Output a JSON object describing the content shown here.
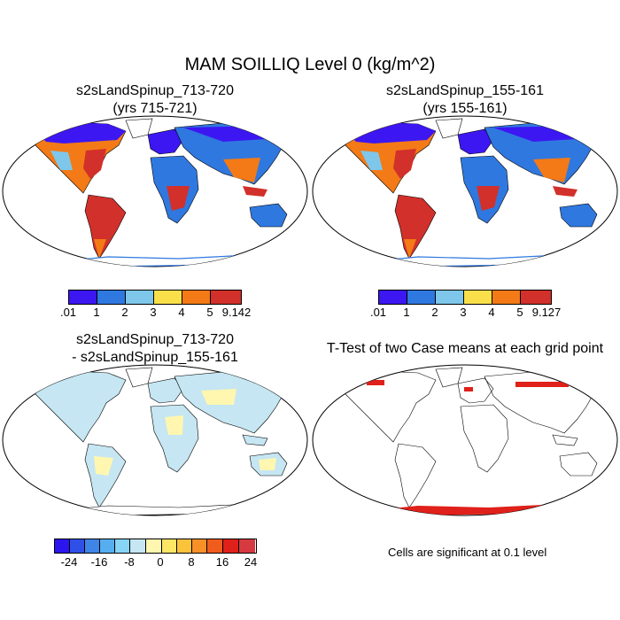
{
  "figure": {
    "title": "MAM SOILLIQ Level 0 (kg/m^2)",
    "panel_a": {
      "line1": "s2sLandSpinup_713-720",
      "line2": "(yrs 715-721)"
    },
    "panel_b": {
      "line1": "s2sLandSpinup_155-161",
      "line2": "(yrs 155-161)"
    },
    "panel_c": {
      "line1": "s2sLandSpinup_713-720",
      "line2": "- s2sLandSpinup_155-161"
    },
    "panel_d": {
      "line1": "T-Test of two Case means at each grid point"
    },
    "colorbar_a": {
      "colors": [
        "#3c17f2",
        "#2f78e0",
        "#7ec7ea",
        "#f9e04a",
        "#f37a16",
        "#d2302a"
      ],
      "labels": [
        ".01",
        "1",
        "2",
        "3",
        "4",
        "5",
        "9.142"
      ]
    },
    "colorbar_b": {
      "colors": [
        "#3c17f2",
        "#2f78e0",
        "#7ec7ea",
        "#f9e04a",
        "#f37a16",
        "#d2302a"
      ],
      "labels": [
        ".01",
        "1",
        "2",
        "3",
        "4",
        "5",
        "9.127"
      ]
    },
    "colorbar_diff": {
      "colors": [
        "#2b16f0",
        "#2f50e6",
        "#3f85e8",
        "#56aef0",
        "#86d4f6",
        "#c5e6f2",
        "#fff7b0",
        "#fde565",
        "#fbc33a",
        "#f89028",
        "#f05c1e",
        "#e0201a",
        "#d63a40"
      ],
      "labels": [
        "-24",
        "-16",
        "-8",
        "0",
        "8",
        "16",
        "24"
      ]
    },
    "ttest_note": "Cells are significant at 0.1 level"
  }
}
